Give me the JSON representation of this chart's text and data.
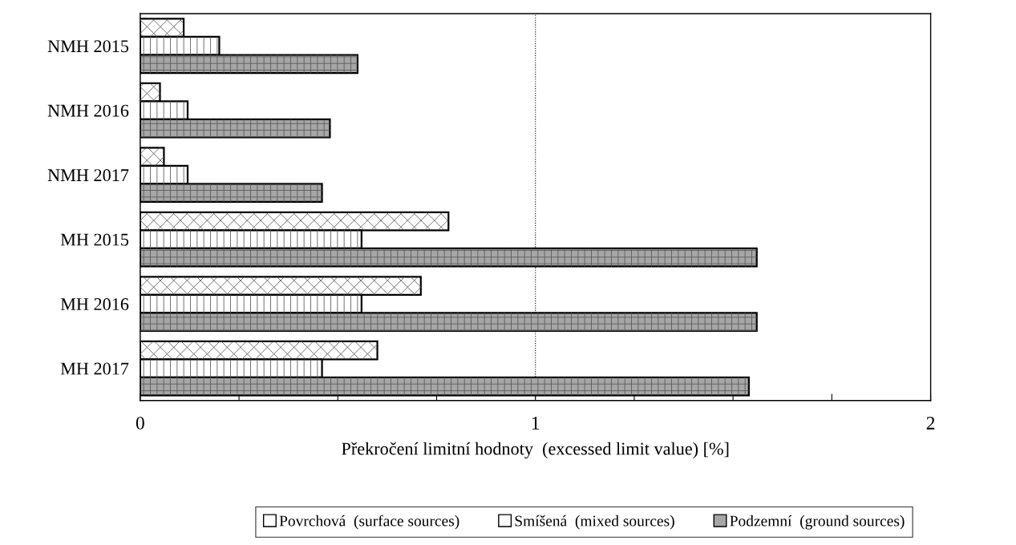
{
  "chart_data": {
    "type": "bar",
    "orientation": "horizontal",
    "categories": [
      "NMH 2015",
      "NMH 2016",
      "NMH 2017",
      "MH 2015",
      "MH 2016",
      "MH 2017"
    ],
    "series": [
      {
        "name": "Povrchová  (surface sources)",
        "color": "#ffffff",
        "values": [
          0.11,
          0.05,
          0.06,
          0.78,
          0.71,
          0.6
        ]
      },
      {
        "name": "Smíšená  (mixed sources)",
        "color": "#ffffff",
        "values": [
          0.2,
          0.12,
          0.12,
          0.56,
          0.56,
          0.46
        ]
      },
      {
        "name": "Podzemní  (ground sources)",
        "color": "#a6a6a6",
        "values": [
          0.55,
          0.48,
          0.46,
          1.56,
          1.56,
          1.54
        ]
      }
    ],
    "xlabel": "Překročení limitní hodnoty  (excessed limit value) [%]",
    "xlim": [
      0,
      2
    ],
    "xticks": [
      0,
      {
        "value": 0.25,
        "label": null
      },
      {
        "value": 0.5,
        "label": null
      },
      {
        "value": 0.75,
        "label": null
      },
      1,
      {
        "value": 1.25,
        "label": null
      },
      {
        "value": 1.5,
        "label": null
      },
      {
        "value": 1.75,
        "label": null
      },
      2
    ],
    "grid": "x",
    "legend": "bottom"
  }
}
